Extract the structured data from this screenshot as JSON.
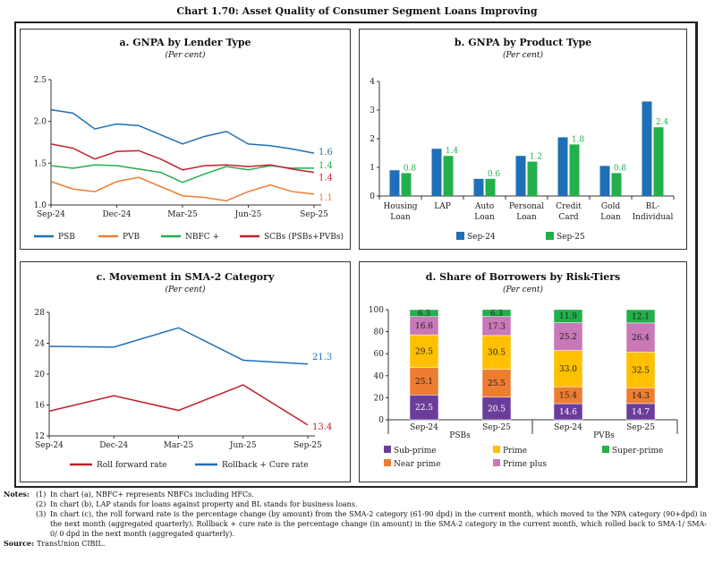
{
  "title": "Chart 1.70: Asset Quality of Consumer Segment Loans Improving",
  "unit_label": "(Per cent)",
  "colors": {
    "blue": "#1f6fb8",
    "orange": "#ed7d31",
    "green": "#22b04b",
    "red": "#c0202a",
    "purple": "#6a3d9a",
    "yellow": "#ffc000",
    "pink": "#c978b8"
  },
  "chart_data": [
    {
      "id": "a",
      "type": "line",
      "title": "a. GNPA by Lender Type",
      "subtitle": "(Per cent)",
      "x": [
        "Sep-24",
        "Oct-24",
        "Nov-24",
        "Dec-24",
        "Jan-25",
        "Feb-25",
        "Mar-25",
        "Apr-25",
        "May-25",
        "Jun-25",
        "Jul-25",
        "Aug-25",
        "Sep-25"
      ],
      "x_ticks": [
        "Sep-24",
        "Dec-24",
        "Mar-25",
        "Jun-25",
        "Sep-25"
      ],
      "ylim": [
        1.0,
        2.5
      ],
      "y_ticks": [
        "1.0",
        "1.5",
        "2.0",
        "2.5"
      ],
      "grid": false,
      "legend": "bottom",
      "series": [
        {
          "name": "PSB",
          "color": "#1f6fb8",
          "values": [
            2.14,
            2.1,
            1.91,
            1.97,
            1.95,
            1.84,
            1.73,
            1.82,
            1.88,
            1.73,
            1.71,
            1.67,
            1.62
          ],
          "end_label": "1.6"
        },
        {
          "name": "PVB",
          "color": "#ed7d31",
          "values": [
            1.28,
            1.19,
            1.16,
            1.28,
            1.33,
            1.22,
            1.11,
            1.09,
            1.05,
            1.16,
            1.24,
            1.16,
            1.13
          ],
          "end_label": "1.1"
        },
        {
          "name": "NBFC +",
          "color": "#22b04b",
          "values": [
            1.47,
            1.44,
            1.48,
            1.47,
            1.43,
            1.39,
            1.27,
            1.37,
            1.46,
            1.42,
            1.47,
            1.44,
            1.44
          ],
          "end_label": "1.4"
        },
        {
          "name": "SCBs (PSBs+PVBs)",
          "color": "#c0202a",
          "values": [
            1.73,
            1.68,
            1.55,
            1.64,
            1.65,
            1.55,
            1.42,
            1.47,
            1.48,
            1.46,
            1.48,
            1.43,
            1.39
          ],
          "end_label": "1.4"
        }
      ]
    },
    {
      "id": "b",
      "type": "bar",
      "title": "b. GNPA by Product Type",
      "subtitle": "(Per cent)",
      "categories": [
        [
          "Housing",
          "Loan"
        ],
        [
          "LAP",
          ""
        ],
        [
          "Auto",
          "Loan"
        ],
        [
          "Personal",
          "Loan"
        ],
        [
          "Credit",
          "Card"
        ],
        [
          "Gold",
          "Loan"
        ],
        [
          "BL-",
          "Individual"
        ]
      ],
      "ylim": [
        0,
        4
      ],
      "y_ticks": [
        "0",
        "1",
        "2",
        "3",
        "4"
      ],
      "legend": "bottom",
      "series": [
        {
          "name": "Sep-24",
          "color": "#1f6fb8",
          "values": [
            0.9,
            1.65,
            0.6,
            1.4,
            2.05,
            1.05,
            3.3
          ]
        },
        {
          "name": "Sep-25",
          "color": "#22b04b",
          "values": [
            0.8,
            1.4,
            0.6,
            1.2,
            1.8,
            0.8,
            2.4
          ],
          "labels": [
            "0.8",
            "1.4",
            "0.6",
            "1.2",
            "1.8",
            "0.8",
            "2.4"
          ]
        }
      ]
    },
    {
      "id": "c",
      "type": "line",
      "title": "c. Movement in SMA-2 Category",
      "subtitle": "(Per cent)",
      "x": [
        "Sep-24",
        "Dec-24",
        "Mar-25",
        "Jun-25",
        "Sep-25"
      ],
      "x_ticks": [
        "Sep-24",
        "Dec-24",
        "Mar-25",
        "Jun-25",
        "Sep-25"
      ],
      "ylim": [
        12,
        28
      ],
      "y_ticks": [
        "12",
        "16",
        "20",
        "24",
        "28"
      ],
      "legend": "bottom",
      "series": [
        {
          "name": "Roll forward rate",
          "color": "#c0202a",
          "values": [
            15.2,
            17.2,
            15.3,
            18.6,
            13.4
          ],
          "end_label": "13.4"
        },
        {
          "name": "Rollback + Cure rate",
          "color": "#1f6fb8",
          "values": [
            23.6,
            23.5,
            26.0,
            21.8,
            21.3
          ],
          "end_label": "21.3"
        }
      ]
    },
    {
      "id": "d",
      "type": "bar",
      "stacked": true,
      "title": "d. Share of Borrowers by Risk-Tiers",
      "subtitle": "(Per cent)",
      "categories": [
        "Sep-24",
        "Sep-25",
        "Sep-24",
        "Sep-25"
      ],
      "groups": [
        "PSBs",
        "PVBs"
      ],
      "ylim": [
        0,
        100
      ],
      "y_ticks": [
        "0",
        "20",
        "40",
        "60",
        "80",
        "100"
      ],
      "legend": "bottom",
      "series": [
        {
          "name": "Sub-prime",
          "color": "#6a3d9a",
          "values": [
            22.5,
            20.5,
            14.6,
            14.7
          ],
          "labels": [
            "22.5",
            "20.5",
            "14.6",
            "14.7"
          ]
        },
        {
          "name": "Near prime",
          "color": "#ed7d31",
          "values": [
            25.1,
            25.5,
            15.4,
            14.3
          ],
          "labels": [
            "25.1",
            "25.5",
            "15.4",
            "14.3"
          ]
        },
        {
          "name": "Prime",
          "color": "#ffc000",
          "values": [
            29.5,
            30.5,
            33.0,
            32.5
          ],
          "labels": [
            "29.5",
            "30.5",
            "33.0",
            "32.5"
          ]
        },
        {
          "name": "Prime plus",
          "color": "#c978b8",
          "values": [
            16.6,
            17.3,
            25.2,
            26.4
          ],
          "labels": [
            "16.6",
            "17.3",
            "25.2",
            "26.4"
          ]
        },
        {
          "name": "Super-prime",
          "color": "#22b04b",
          "values": [
            6.3,
            6.3,
            11.9,
            12.1
          ],
          "labels": [
            "6.3",
            "6.3",
            "11.9",
            "12.1"
          ]
        }
      ]
    }
  ],
  "notes": {
    "label": "Notes:",
    "items": [
      {
        "num": "(1)",
        "text": "In chart (a), NBFC+ represents NBFCs including HFCs."
      },
      {
        "num": "(2)",
        "text": "In chart (b), LAP stands for loans against property and BL stands for business loans."
      },
      {
        "num": "(3)",
        "text": "In chart (c), the roll forward rate is the percentage change (by amount) from the SMA-2 category (61-90 dpd) in the current month, which moved to the NPA category (90+dpd) in the next month (aggregated quarterly). Rollback + cure rate is the percentage change (in amount) in the SMA-2 category in the current month, which rolled back to SMA-1/ SMA-0/ 0 dpd in the next month (aggregated quarterly)."
      }
    ]
  },
  "source": {
    "label": "Source:",
    "text": "TransUnion CIBIL."
  }
}
